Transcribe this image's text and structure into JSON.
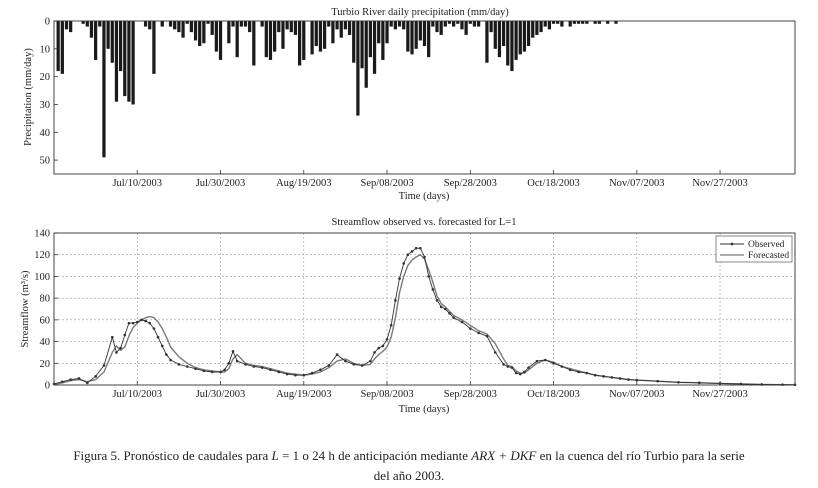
{
  "chart_data": [
    {
      "type": "bar",
      "title": "Turbio River daily precipitation (mm/day)",
      "xlabel": "Time (days)",
      "ylabel": "Precipitation (mm/day)",
      "y_inverted": true,
      "ylim": [
        0,
        55
      ],
      "yticks": [
        "0",
        "10",
        "20",
        "30",
        "40",
        "50"
      ],
      "x_tick_labels": [
        "Jul/10/2003",
        "Jul/30/2003",
        "Aug/19/2003",
        "Sep/08/2003",
        "Sep/28/2003",
        "Oct/18/2003",
        "Nov/07/2003",
        "Nov/27/2003"
      ],
      "x_ticks_day": [
        20,
        40,
        60,
        80,
        100,
        120,
        140,
        160
      ],
      "xlim": [
        0,
        178
      ],
      "grid": false,
      "x": [
        1,
        2,
        3,
        4,
        7,
        8,
        9,
        10,
        11,
        12,
        13,
        14,
        15,
        16,
        17,
        18,
        19,
        22,
        23,
        24,
        26,
        28,
        29,
        30,
        31,
        32,
        33,
        34,
        35,
        36,
        37,
        38,
        39,
        40,
        42,
        43,
        44,
        45,
        46,
        47,
        48,
        50,
        51,
        52,
        53,
        54,
        55,
        56,
        57,
        58,
        59,
        60,
        62,
        63,
        64,
        65,
        66,
        67,
        68,
        69,
        70,
        71,
        72,
        73,
        74,
        75,
        76,
        77,
        78,
        79,
        80,
        81,
        82,
        83,
        84,
        85,
        86,
        87,
        88,
        89,
        90,
        91,
        92,
        93,
        94,
        95,
        96,
        97,
        98,
        99,
        100,
        101,
        102,
        104,
        105,
        106,
        107,
        108,
        109,
        110,
        111,
        112,
        113,
        114,
        115,
        116,
        117,
        118,
        119,
        120,
        121,
        122,
        124,
        125,
        126,
        127,
        128,
        130,
        131,
        133,
        135
      ],
      "values": [
        18,
        19,
        3,
        4,
        1,
        2,
        6,
        14,
        2,
        49,
        10,
        15,
        29,
        18,
        27,
        29,
        30,
        2,
        3,
        19,
        2,
        2,
        3,
        4,
        6,
        1,
        4,
        7,
        9,
        8,
        1,
        5,
        11,
        14,
        8,
        2,
        13,
        2,
        2,
        4,
        16,
        2,
        13,
        14,
        11,
        4,
        10,
        3,
        4,
        5,
        16,
        14,
        12,
        9,
        11,
        10,
        2,
        8,
        3,
        6,
        3,
        5,
        15,
        34,
        17,
        24,
        13,
        19,
        8,
        14,
        8,
        2,
        3,
        2,
        3,
        11,
        12,
        10,
        7,
        9,
        13,
        2,
        4,
        5,
        2,
        1,
        2,
        1,
        3,
        5,
        1,
        2,
        2,
        15,
        4,
        10,
        13,
        9,
        16,
        18,
        14,
        12,
        11,
        9,
        6,
        5,
        4,
        2,
        3,
        1,
        1,
        2,
        2,
        1,
        1,
        1,
        1,
        1,
        1,
        1,
        1
      ]
    },
    {
      "type": "line",
      "title": "Streamflow observed vs. forecasted for L=1",
      "xlabel": "Time (days)",
      "ylabel": "Streamflow (m³/s)",
      "ylim": [
        0,
        140
      ],
      "yticks": [
        "0",
        "20",
        "40",
        "60",
        "80",
        "100",
        "120",
        "140"
      ],
      "x_tick_labels": [
        "Jul/10/2003",
        "Jul/30/2003",
        "Aug/19/2003",
        "Sep/08/2003",
        "Sep/28/2003",
        "Oct/18/2003",
        "Nov/07/2003",
        "Nov/27/2003"
      ],
      "x_ticks_day": [
        20,
        40,
        60,
        80,
        100,
        120,
        140,
        160
      ],
      "xlim": [
        0,
        178
      ],
      "grid": true,
      "legend_position": "top-right",
      "series": [
        {
          "name": "Observed",
          "marker": "dot",
          "color": "#333333",
          "x": [
            0,
            2,
            4,
            6,
            8,
            10,
            12,
            14,
            15,
            16,
            17,
            18,
            19,
            20,
            21,
            22,
            23,
            24,
            25,
            26,
            27,
            28,
            30,
            32,
            34,
            36,
            38,
            40,
            41,
            42,
            43,
            44,
            46,
            48,
            50,
            52,
            54,
            56,
            58,
            60,
            62,
            64,
            66,
            68,
            70,
            72,
            74,
            76,
            77,
            78,
            79,
            80,
            81,
            82,
            83,
            84,
            85,
            86,
            87,
            88,
            89,
            90,
            91,
            92,
            93,
            94,
            95,
            96,
            98,
            100,
            102,
            104,
            106,
            108,
            109,
            110,
            111,
            112,
            113,
            114,
            116,
            118,
            120,
            122,
            124,
            126,
            128,
            130,
            132,
            134,
            136,
            138,
            140,
            145,
            150,
            155,
            160,
            165,
            170,
            175,
            178
          ],
          "values": [
            1,
            3,
            5,
            6,
            2,
            8,
            18,
            44,
            30,
            34,
            46,
            57,
            57,
            58,
            60,
            59,
            57,
            52,
            44,
            36,
            28,
            23,
            19,
            17,
            15,
            13,
            12,
            12,
            14,
            20,
            31,
            22,
            19,
            17,
            16,
            14,
            12,
            10,
            9,
            9,
            11,
            14,
            18,
            28,
            22,
            19,
            18,
            22,
            30,
            34,
            36,
            42,
            55,
            78,
            98,
            112,
            120,
            123,
            126,
            126,
            118,
            100,
            88,
            78,
            72,
            70,
            66,
            62,
            58,
            52,
            48,
            45,
            30,
            19,
            17,
            16,
            11,
            10,
            12,
            16,
            22,
            23,
            20,
            17,
            14,
            12,
            11,
            9,
            8,
            7,
            6,
            5,
            4.5,
            3.5,
            2.5,
            2,
            1.5,
            1,
            0.5,
            0.3,
            0.2
          ]
        },
        {
          "name": "Forecasted",
          "marker": "none",
          "color": "#7a7a7a",
          "x": [
            0,
            2,
            4,
            6,
            8,
            10,
            12,
            14,
            15,
            16,
            17,
            18,
            19,
            20,
            21,
            22,
            23,
            24,
            25,
            26,
            27,
            28,
            30,
            32,
            34,
            36,
            38,
            40,
            41,
            42,
            43,
            44,
            46,
            48,
            50,
            52,
            54,
            56,
            58,
            60,
            62,
            64,
            66,
            68,
            70,
            72,
            74,
            76,
            77,
            78,
            79,
            80,
            81,
            82,
            83,
            84,
            85,
            86,
            87,
            88,
            89,
            90,
            91,
            92,
            93,
            94,
            95,
            96,
            98,
            100,
            102,
            104,
            106,
            108,
            109,
            110,
            111,
            112,
            113,
            114,
            116,
            118,
            120,
            122,
            124,
            126,
            128,
            130,
            132,
            134,
            136,
            138,
            140,
            145,
            150,
            155,
            160,
            165,
            170,
            175,
            178
          ],
          "values": [
            0.5,
            2,
            4,
            5,
            3,
            5,
            12,
            30,
            36,
            32,
            35,
            45,
            53,
            57,
            60,
            62,
            63,
            62,
            58,
            52,
            44,
            35,
            26,
            20,
            16,
            14,
            13,
            12,
            12,
            15,
            24,
            28,
            20,
            18,
            17,
            15,
            13,
            11,
            10,
            9,
            10,
            12,
            16,
            22,
            24,
            20,
            18,
            19,
            24,
            28,
            31,
            35,
            44,
            62,
            85,
            100,
            110,
            115,
            118,
            120,
            116,
            106,
            95,
            82,
            75,
            72,
            68,
            64,
            60,
            55,
            50,
            47,
            38,
            24,
            18,
            17,
            13,
            11,
            11,
            14,
            20,
            23,
            21,
            17,
            15,
            13,
            11,
            9,
            8,
            7,
            6,
            5,
            4.5,
            3.5,
            2.5,
            2,
            1.5,
            1,
            0.5,
            0.3,
            0.2
          ]
        }
      ]
    }
  ],
  "caption": {
    "p1": "Figura 5. Pronóstico de caudales para ",
    "L": "L",
    "p2": " = 1 o 24 h de anticipación mediante ",
    "arx": "ARX + DKF",
    "p3": " en la cuenca del río Turbio para la serie",
    "line2": "del año 2003."
  }
}
